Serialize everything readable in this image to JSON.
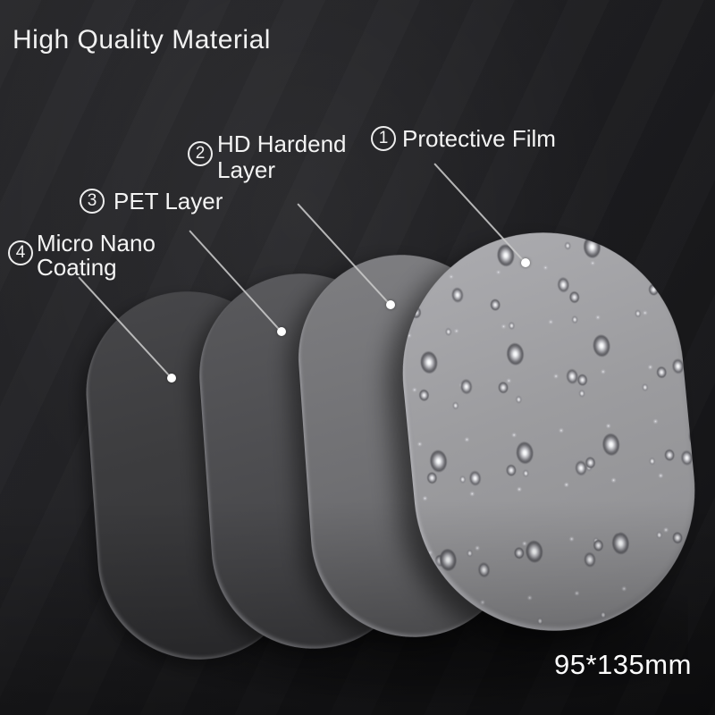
{
  "title": "High Quality Material",
  "size_label": "95*135mm",
  "layers": [
    {
      "number": "1",
      "label": "Protective Film"
    },
    {
      "number": "2",
      "label": "HD Hardend Layer"
    },
    {
      "number": "3",
      "label": "PET Layer"
    },
    {
      "number": "4",
      "label": "Micro Nano Coating"
    }
  ],
  "colors": {
    "background": "#1d1d1f",
    "layer_protective_film": "#9c9c9f",
    "layer_hd_hardend": "#6f6f72",
    "layer_pet": "#4b4b4e",
    "layer_micro_nano": "#3c3c3e",
    "text": "#f2f2f2",
    "leader_line": "#c9c9c9"
  }
}
